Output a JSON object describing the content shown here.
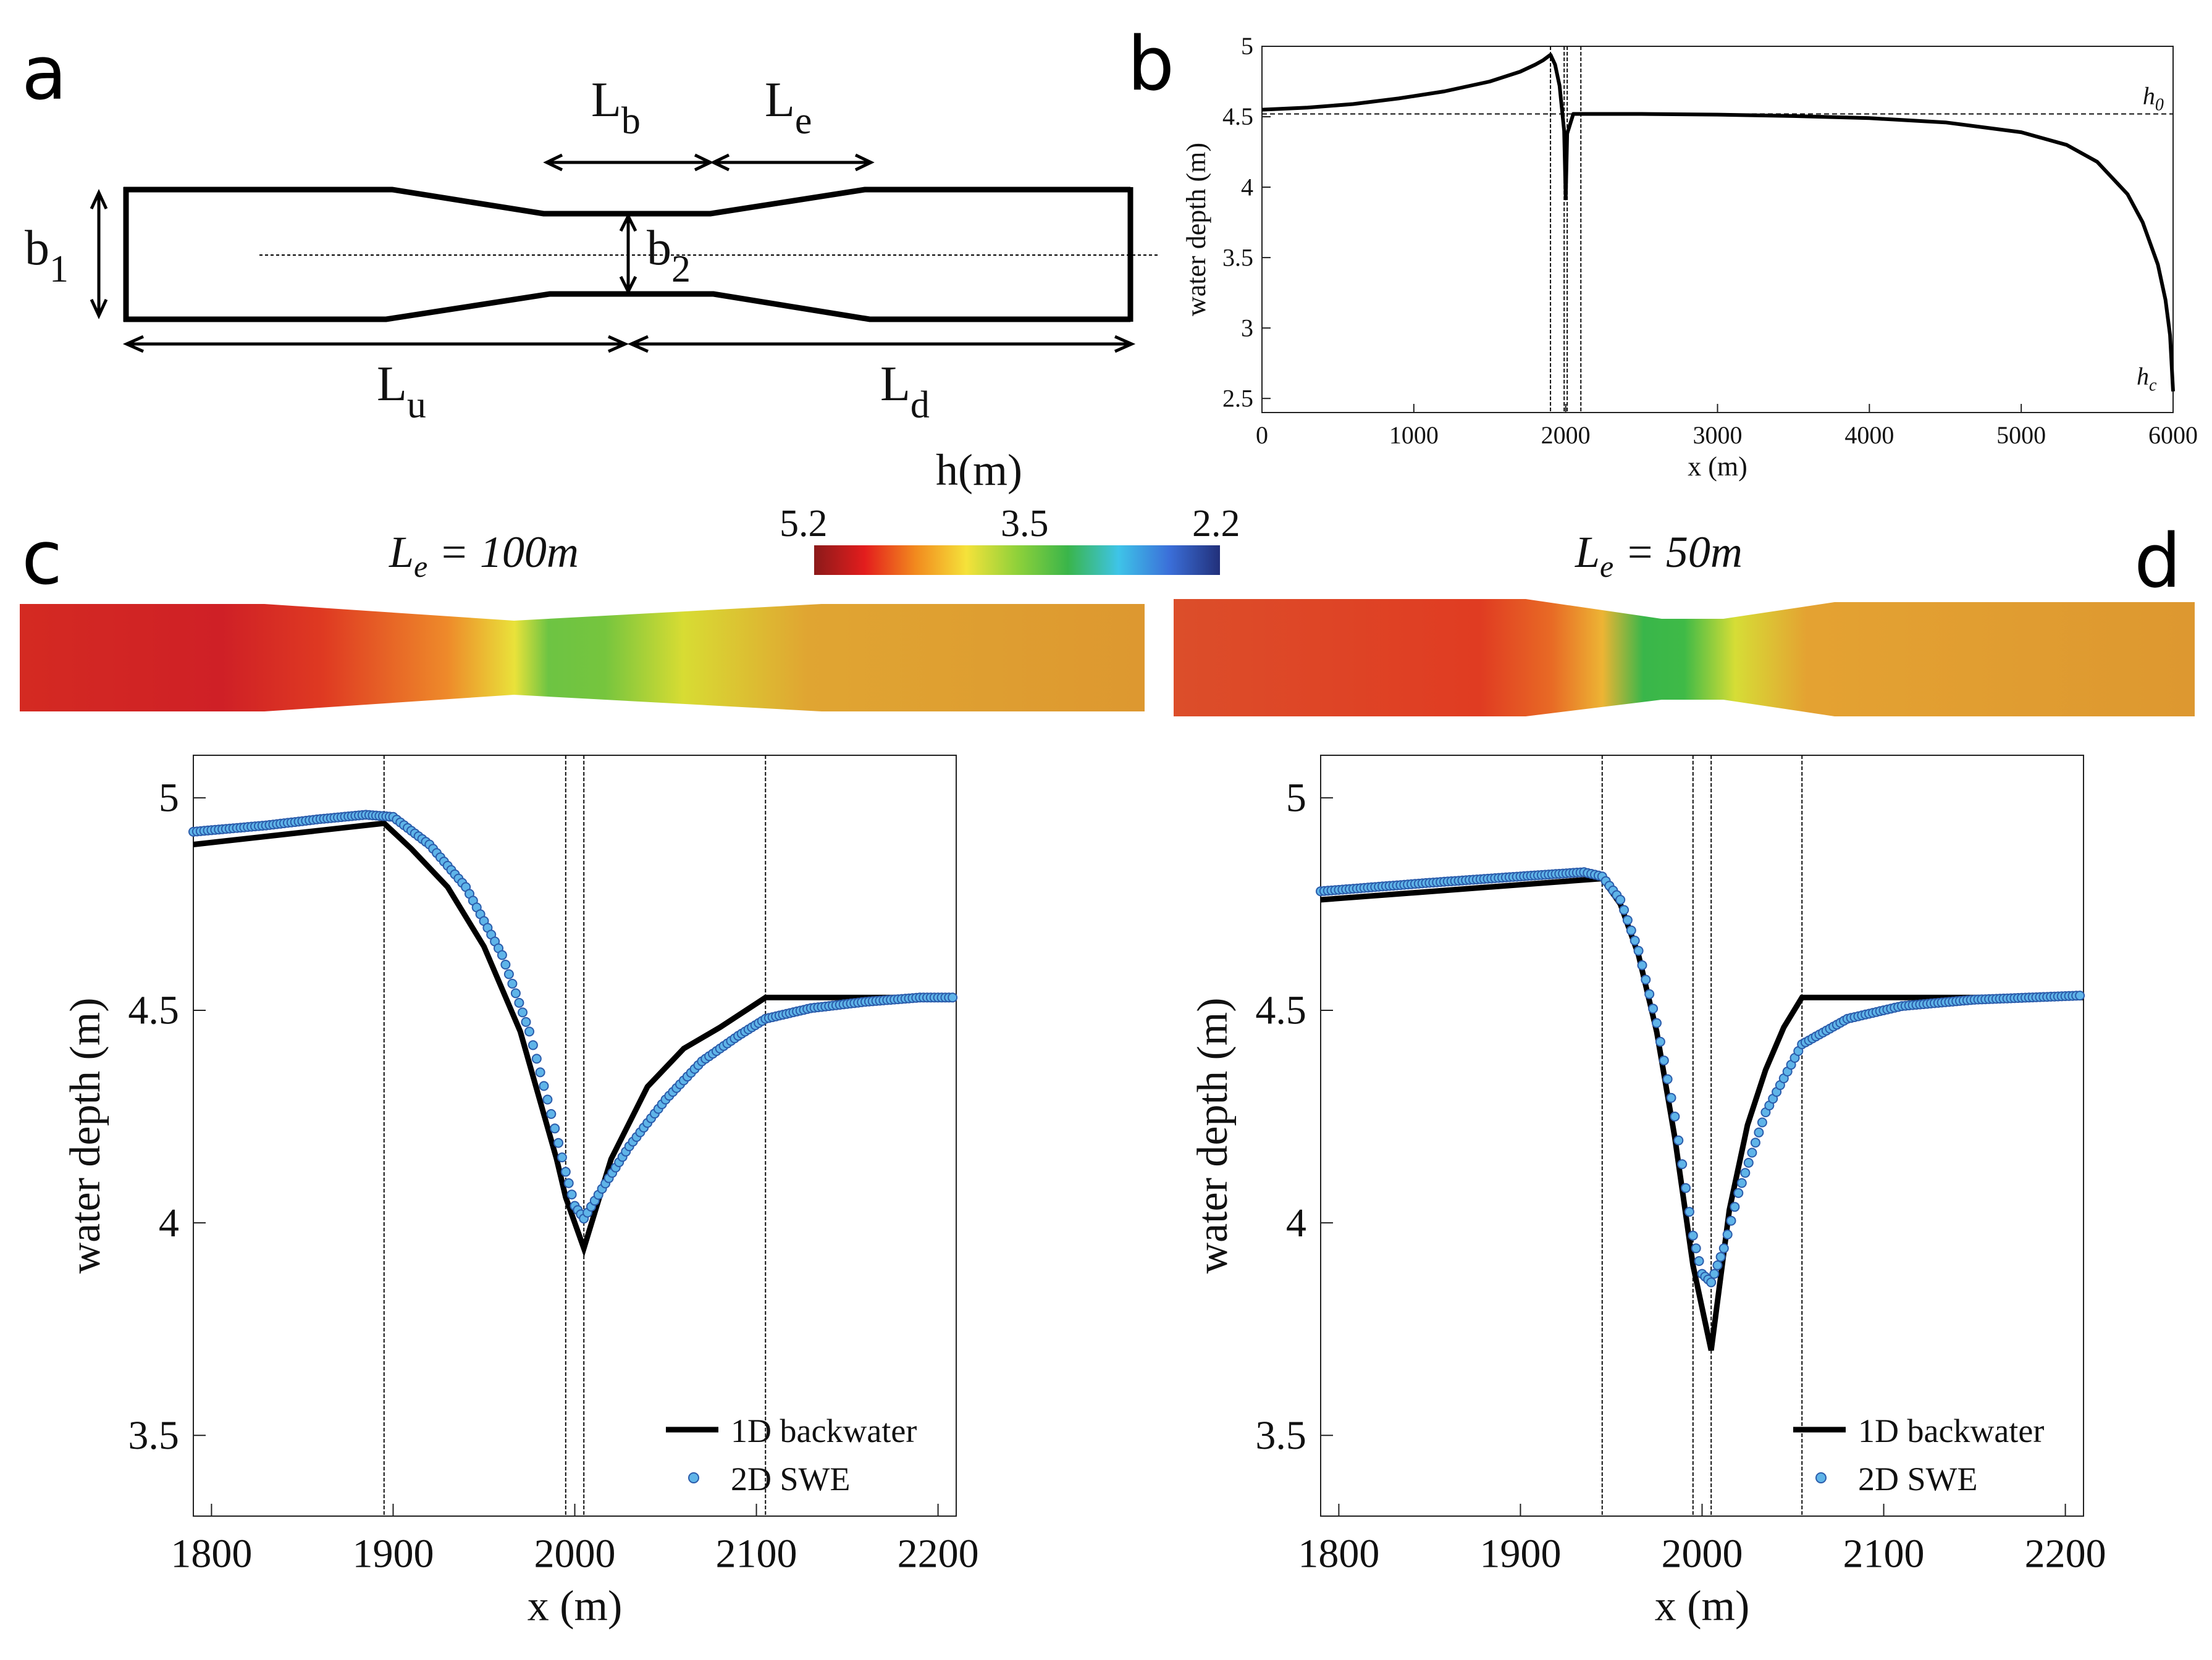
{
  "panels": {
    "a": "a",
    "b": "b",
    "c": "c",
    "d": "d"
  },
  "schematic": {
    "Lb": "L",
    "Lb_sub": "b",
    "Le": "L",
    "Le_sub": "e",
    "b1": "b",
    "b1_sub": "1",
    "b2": "b",
    "b2_sub": "2",
    "Lu": "L",
    "Lu_sub": "u",
    "Ld": "L",
    "Ld_sub": "d"
  },
  "colorbar": {
    "title": "h(m)",
    "tick_left": "5.2",
    "tick_mid": "3.5",
    "tick_right": "2.2",
    "colors": [
      "#8b1a1a",
      "#e31d1d",
      "#f28a1e",
      "#f5e23a",
      "#8fd13a",
      "#3ab54a",
      "#3ec4e8",
      "#3b6fd9",
      "#22307a"
    ]
  },
  "channel_c": {
    "title_var": "L",
    "title_sub": "e",
    "title_val": " = 100m"
  },
  "channel_d": {
    "title_var": "L",
    "title_sub": "e",
    "title_val": " = 50m"
  },
  "chart_data": [
    {
      "id": "b",
      "type": "line",
      "xlabel": "x (m)",
      "ylabel": "water depth (m)",
      "xlim": [
        0,
        6000
      ],
      "ylim": [
        2.4,
        5.0
      ],
      "xticks": [
        0,
        1000,
        2000,
        3000,
        4000,
        5000,
        6000
      ],
      "yticks": [
        2.5,
        3,
        3.5,
        4,
        4.5,
        5
      ],
      "xticklabels": [
        "0",
        "1000",
        "2000",
        "3000",
        "4000",
        "5000",
        "6000"
      ],
      "yticklabels": [
        "2.5",
        "3",
        "3.5",
        "4",
        "4.5",
        "5"
      ],
      "h0": 4.52,
      "h0_label": "h",
      "h0_sub": "0",
      "hc_label": "h",
      "hc_sub": "c",
      "vlines": [
        1900,
        1990,
        2010,
        2100
      ],
      "series": [
        {
          "name": "water depth",
          "x": [
            0,
            300,
            600,
            900,
            1200,
            1500,
            1700,
            1800,
            1850,
            1900,
            1930,
            1960,
            1990,
            2000,
            2010,
            2050,
            2100,
            2500,
            3000,
            3500,
            4000,
            4500,
            5000,
            5300,
            5500,
            5700,
            5800,
            5900,
            5950,
            5980,
            6000
          ],
          "y": [
            4.55,
            4.565,
            4.59,
            4.63,
            4.68,
            4.75,
            4.82,
            4.87,
            4.9,
            4.94,
            4.87,
            4.72,
            4.4,
            3.92,
            4.38,
            4.52,
            4.52,
            4.52,
            4.515,
            4.505,
            4.49,
            4.46,
            4.39,
            4.3,
            4.18,
            3.95,
            3.75,
            3.45,
            3.2,
            2.95,
            2.55
          ]
        }
      ]
    },
    {
      "id": "c",
      "type": "line",
      "xlabel": "x (m)",
      "ylabel": "water depth (m)",
      "xlim": [
        1790,
        2210
      ],
      "ylim": [
        3.31,
        5.1
      ],
      "xticks": [
        1800,
        1900,
        2000,
        2100,
        2200
      ],
      "yticks": [
        3.5,
        4,
        4.5,
        5
      ],
      "xticklabels": [
        "1800",
        "1900",
        "2000",
        "2100",
        "2200"
      ],
      "yticklabels": [
        "3.5",
        "4",
        "4.5",
        "5"
      ],
      "vlines": [
        1895,
        1995,
        2005,
        2105
      ],
      "legend": [
        "1D backwater",
        "2D SWE"
      ],
      "series": [
        {
          "name": "1D backwater",
          "x": [
            1790,
            1895,
            1910,
            1930,
            1950,
            1970,
            1990,
            1995,
            2005,
            2020,
            2040,
            2060,
            2080,
            2105,
            2210
          ],
          "y": [
            4.89,
            4.94,
            4.88,
            4.79,
            4.65,
            4.45,
            4.15,
            4.06,
            3.94,
            4.15,
            4.32,
            4.41,
            4.46,
            4.53,
            4.53
          ]
        },
        {
          "name": "2D SWE",
          "x": [
            1790,
            1830,
            1860,
            1885,
            1900,
            1920,
            1940,
            1960,
            1975,
            1985,
            1995,
            2000,
            2005,
            2015,
            2030,
            2050,
            2070,
            2090,
            2105,
            2130,
            2160,
            2190,
            2210
          ],
          "y": [
            4.92,
            4.935,
            4.95,
            4.96,
            4.955,
            4.89,
            4.79,
            4.63,
            4.45,
            4.29,
            4.12,
            4.04,
            4.01,
            4.08,
            4.18,
            4.29,
            4.38,
            4.44,
            4.48,
            4.505,
            4.52,
            4.53,
            4.53
          ]
        }
      ]
    },
    {
      "id": "d",
      "type": "line",
      "xlabel": "x (m)",
      "ylabel": "water depth (m)",
      "xlim": [
        1790,
        2210
      ],
      "ylim": [
        3.31,
        5.1
      ],
      "xticks": [
        1800,
        1900,
        2000,
        2100,
        2200
      ],
      "yticks": [
        3.5,
        4,
        4.5,
        5
      ],
      "xticklabels": [
        "1800",
        "1900",
        "2000",
        "2100",
        "2200"
      ],
      "yticklabels": [
        "3.5",
        "4",
        "4.5",
        "5"
      ],
      "vlines": [
        1945,
        1995,
        2005,
        2055
      ],
      "legend": [
        "1D backwater",
        "2D SWE"
      ],
      "series": [
        {
          "name": "1D backwater",
          "x": [
            1790,
            1945,
            1955,
            1965,
            1975,
            1985,
            1995,
            2005,
            2015,
            2025,
            2035,
            2045,
            2055,
            2210
          ],
          "y": [
            4.76,
            4.81,
            4.75,
            4.63,
            4.45,
            4.2,
            3.9,
            3.7,
            4.03,
            4.23,
            4.36,
            4.46,
            4.53,
            4.53
          ]
        },
        {
          "name": "2D SWE",
          "x": [
            1790,
            1850,
            1900,
            1935,
            1945,
            1955,
            1965,
            1975,
            1985,
            1995,
            2000,
            2005,
            2012,
            2020,
            2035,
            2055,
            2080,
            2110,
            2150,
            2210
          ],
          "y": [
            4.78,
            4.8,
            4.815,
            4.825,
            4.815,
            4.76,
            4.64,
            4.47,
            4.25,
            3.97,
            3.88,
            3.86,
            3.94,
            4.07,
            4.26,
            4.42,
            4.48,
            4.51,
            4.525,
            4.535
          ]
        }
      ]
    }
  ]
}
